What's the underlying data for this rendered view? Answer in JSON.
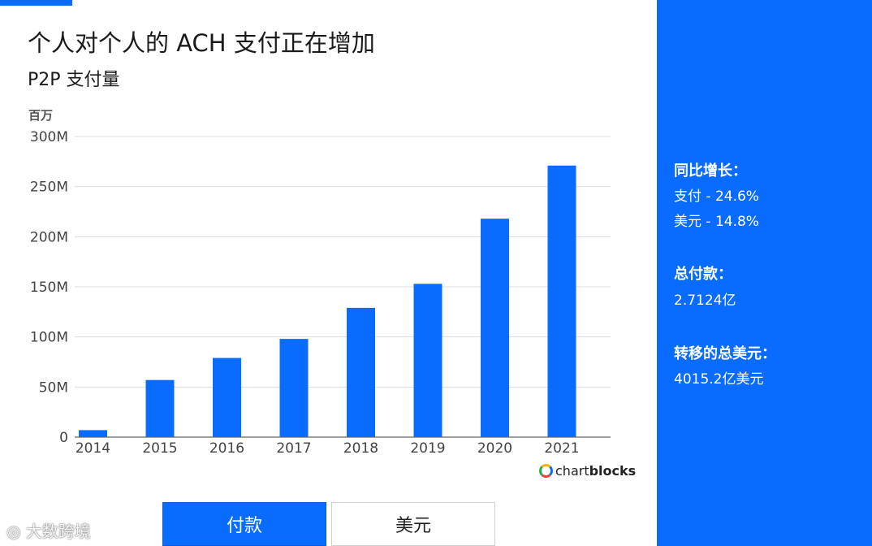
{
  "header": {
    "title": "个人对个人的 ACH 支付正在增加",
    "subtitle": "P2P 支付量",
    "unit_label": "百万"
  },
  "chart_data": {
    "type": "bar",
    "title": "个人对个人的 ACH 支付正在增加",
    "subtitle": "P2P 支付量",
    "ylabel": "百万",
    "categories": [
      "2014",
      "2015",
      "2016",
      "2017",
      "2018",
      "2019",
      "2020",
      "2021"
    ],
    "values": [
      7,
      57,
      79,
      98,
      129,
      153,
      218,
      271
    ],
    "ylim": [
      0,
      300
    ],
    "yticks": [
      0,
      50,
      100,
      150,
      200,
      250,
      300
    ],
    "ytick_labels": [
      "0",
      "50M",
      "100M",
      "150M",
      "200M",
      "250M",
      "300M"
    ],
    "bar_color": "#0a6cff",
    "grid": true,
    "legend": "none"
  },
  "branding": {
    "prefix": "chart",
    "bold": "blocks"
  },
  "toggle": {
    "payments_label": "付款",
    "dollars_label": "美元",
    "active": "付款"
  },
  "sidebar": {
    "yoy_heading": "同比增长：",
    "yoy_payments": "支付 - 24.6%",
    "yoy_dollars": "美元 - 14.8%",
    "total_heading": "总付款：",
    "total_value": "2.7124亿",
    "transfer_heading": "转移的总美元：",
    "transfer_value": "4015.2亿美元",
    "background": "#0a6cff"
  },
  "watermark": {
    "text": "大数跨境"
  }
}
